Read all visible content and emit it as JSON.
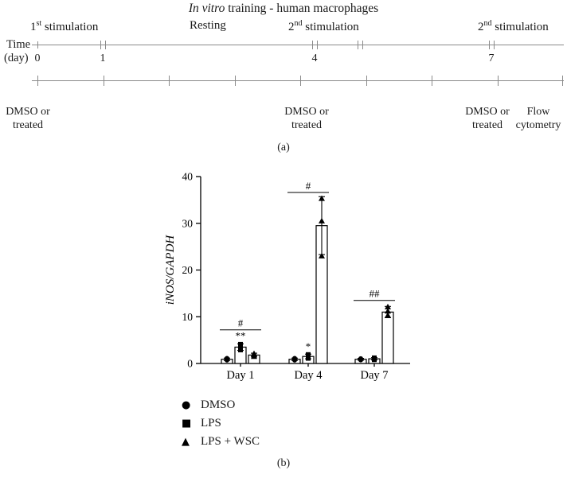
{
  "panel_a": {
    "title": {
      "italic": "In vitro",
      "rest": " training - human macrophages"
    },
    "phases": [
      {
        "num": "1",
        "sup": "st",
        "rest": " stimulation"
      },
      {
        "label": "Resting"
      },
      {
        "num": "2",
        "sup": "nd",
        "rest": " stimulation"
      },
      {
        "num": "2",
        "sup": "nd",
        "rest": " stimulation"
      }
    ],
    "time_axis": {
      "label_line1": "Time",
      "label_line2": "(day)",
      "ticks": [
        "0",
        "1",
        "4",
        "7"
      ]
    },
    "bottom_labels": [
      {
        "line1": "DMSO or",
        "line2": "treated"
      },
      {
        "line1": "DMSO or",
        "line2": "treated"
      },
      {
        "line1": "DMSO or",
        "line2": "treated"
      },
      {
        "line1": "Flow",
        "line2": "cytometry"
      }
    ],
    "panel_label": "(a)"
  },
  "panel_b": {
    "panel_label": "(b)"
  },
  "chart_data": {
    "type": "bar",
    "title": "",
    "xlabel": "",
    "ylabel": "iNOS/GAPDH",
    "ylim": [
      0,
      40
    ],
    "yticks": [
      0,
      10,
      20,
      30,
      40
    ],
    "categories": [
      "Day 1",
      "Day 4",
      "Day 7"
    ],
    "series": [
      {
        "name": "DMSO",
        "marker": "circle",
        "values": [
          0.9,
          0.9,
          0.9
        ],
        "errors": [
          0.25,
          0.25,
          0.2
        ],
        "points": [
          [
            0.7,
            0.9,
            1.1
          ],
          [
            0.7,
            0.9,
            1.1
          ],
          [
            0.75,
            0.9,
            1.05
          ]
        ]
      },
      {
        "name": "LPS",
        "marker": "square",
        "values": [
          3.5,
          1.5,
          1.0
        ],
        "errors": [
          0.7,
          0.5,
          0.25
        ],
        "points": [
          [
            2.9,
            3.5,
            4.1
          ],
          [
            1.1,
            1.5,
            1.9
          ],
          [
            0.8,
            1.0,
            1.2
          ]
        ]
      },
      {
        "name": "LPS + WSC",
        "marker": "triangle",
        "values": [
          1.8,
          29.5,
          11.0
        ],
        "errors": [
          0.4,
          6.2,
          1.2
        ],
        "points": [
          [
            1.5,
            1.8,
            2.1
          ],
          [
            23.0,
            30.5,
            35.3
          ],
          [
            10.3,
            11.2,
            12.1
          ]
        ]
      }
    ],
    "annotations": [
      {
        "group": 0,
        "text": "#",
        "line_y": 7.2,
        "span": [
          0,
          2
        ]
      },
      {
        "group": 0,
        "text": "**",
        "bar": 1,
        "text_y": 5.2
      },
      {
        "group": 1,
        "text": "#",
        "line_y": 36.6,
        "span": [
          0,
          2
        ]
      },
      {
        "group": 1,
        "text": "*",
        "bar": 1,
        "text_y": 2.9
      },
      {
        "group": 2,
        "text": "##",
        "line_y": 13.5,
        "span": [
          0,
          2
        ]
      }
    ],
    "legend": [
      {
        "glyph": "●",
        "marker": "circle",
        "label": "DMSO"
      },
      {
        "glyph": "■",
        "marker": "square",
        "label": "LPS"
      },
      {
        "glyph": "▲",
        "marker": "triangle",
        "label": "LPS + WSC"
      }
    ],
    "legend_position": "below-left",
    "grid": false
  }
}
